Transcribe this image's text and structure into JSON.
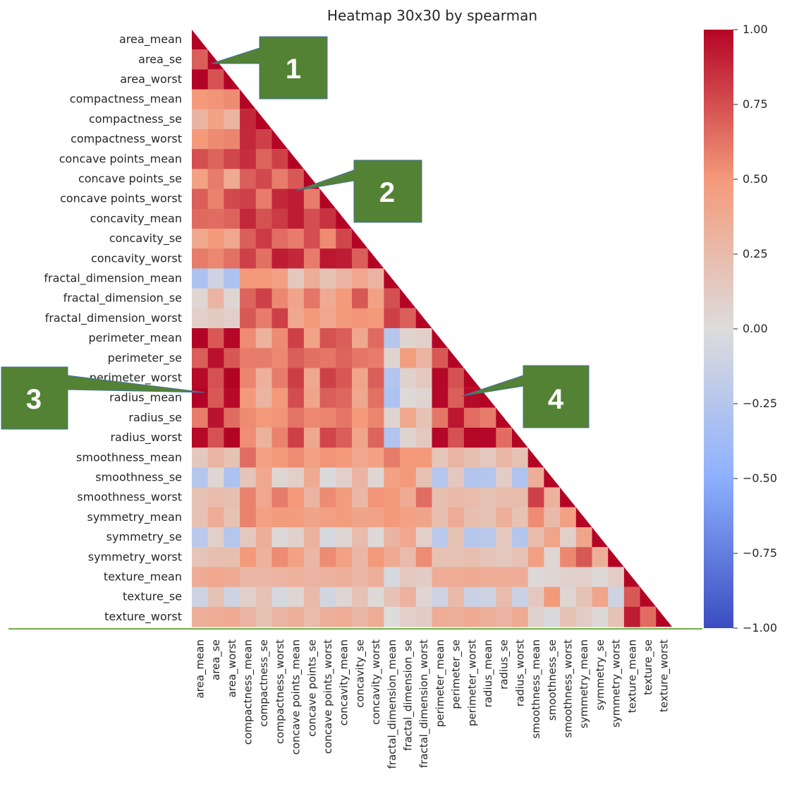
{
  "chart_data": {
    "type": "heatmap",
    "title": "Heatmap 30x30 by spearman",
    "labels": [
      "area_mean",
      "area_se",
      "area_worst",
      "compactness_mean",
      "compactness_se",
      "compactness_worst",
      "concave points_mean",
      "concave points_se",
      "concave points_worst",
      "concavity_mean",
      "concavity_se",
      "concavity_worst",
      "fractal_dimension_mean",
      "fractal_dimension_se",
      "fractal_dimension_worst",
      "perimeter_mean",
      "perimeter_se",
      "perimeter_worst",
      "radius_mean",
      "radius_se",
      "radius_worst",
      "smoothness_mean",
      "smoothness_se",
      "smoothness_worst",
      "symmetry_mean",
      "symmetry_se",
      "symmetry_worst",
      "texture_mean",
      "texture_se",
      "texture_worst"
    ],
    "mask": "upper-triangle",
    "colormap": "coolwarm",
    "vmin": -1.0,
    "vmax": 1.0,
    "colorbar_ticks": [
      "1.00",
      "0.75",
      "0.50",
      "0.25",
      "0.00",
      "−0.25",
      "−0.50",
      "−0.75",
      "−1.00"
    ],
    "matrix": [
      [
        1.0
      ],
      [
        0.7,
        1.0
      ],
      [
        1.0,
        0.74,
        1.0
      ],
      [
        0.5,
        0.52,
        0.55,
        1.0
      ],
      [
        0.3,
        0.45,
        0.3,
        0.88,
        1.0
      ],
      [
        0.5,
        0.55,
        0.57,
        0.88,
        0.8,
        1.0
      ],
      [
        0.75,
        0.68,
        0.78,
        0.86,
        0.68,
        0.8,
        1.0
      ],
      [
        0.45,
        0.6,
        0.38,
        0.7,
        0.77,
        0.6,
        0.72,
        1.0
      ],
      [
        0.7,
        0.58,
        0.77,
        0.8,
        0.6,
        0.88,
        0.92,
        0.6,
        1.0
      ],
      [
        0.66,
        0.65,
        0.68,
        0.88,
        0.74,
        0.82,
        0.92,
        0.75,
        0.85,
        1.0
      ],
      [
        0.4,
        0.5,
        0.4,
        0.7,
        0.82,
        0.65,
        0.6,
        0.75,
        0.55,
        0.78,
        1.0
      ],
      [
        0.6,
        0.56,
        0.64,
        0.8,
        0.64,
        0.92,
        0.88,
        0.6,
        0.94,
        0.92,
        0.7,
        1.0
      ],
      [
        -0.3,
        -0.1,
        -0.3,
        0.5,
        0.5,
        0.45,
        0.15,
        0.35,
        0.2,
        0.3,
        0.4,
        0.3,
        1.0
      ],
      [
        0.05,
        0.3,
        0.05,
        0.68,
        0.8,
        0.56,
        0.42,
        0.62,
        0.38,
        0.5,
        0.72,
        0.45,
        0.75,
        1.0
      ],
      [
        0.1,
        0.14,
        0.1,
        0.72,
        0.6,
        0.8,
        0.4,
        0.5,
        0.4,
        0.5,
        0.52,
        0.5,
        0.8,
        0.7,
        1.0
      ],
      [
        1.0,
        0.72,
        0.99,
        0.55,
        0.32,
        0.55,
        0.8,
        0.44,
        0.74,
        0.7,
        0.4,
        0.66,
        -0.25,
        0.06,
        0.1,
        1.0
      ],
      [
        0.7,
        0.96,
        0.72,
        0.6,
        0.6,
        0.56,
        0.7,
        0.64,
        0.62,
        0.68,
        0.62,
        0.6,
        0.06,
        0.48,
        0.3,
        0.72,
        1.0
      ],
      [
        0.98,
        0.74,
        1.0,
        0.57,
        0.33,
        0.6,
        0.81,
        0.4,
        0.8,
        0.72,
        0.42,
        0.7,
        -0.26,
        0.08,
        0.15,
        0.99,
        0.74,
        1.0
      ],
      [
        1.0,
        0.72,
        0.98,
        0.5,
        0.3,
        0.5,
        0.76,
        0.42,
        0.7,
        0.67,
        0.4,
        0.64,
        -0.3,
        0.03,
        0.06,
        0.99,
        0.7,
        0.98,
        1.0
      ],
      [
        0.6,
        0.95,
        0.65,
        0.55,
        0.5,
        0.52,
        0.63,
        0.56,
        0.57,
        0.62,
        0.5,
        0.57,
        0.06,
        0.4,
        0.2,
        0.62,
        0.94,
        0.65,
        0.6,
        1.0
      ],
      [
        0.98,
        0.74,
        1.0,
        0.54,
        0.32,
        0.58,
        0.8,
        0.4,
        0.78,
        0.7,
        0.42,
        0.68,
        -0.27,
        0.06,
        0.15,
        0.99,
        0.74,
        0.99,
        0.99,
        0.65,
        1.0
      ],
      [
        0.15,
        0.3,
        0.2,
        0.65,
        0.45,
        0.5,
        0.55,
        0.45,
        0.52,
        0.5,
        0.4,
        0.45,
        0.6,
        0.5,
        0.5,
        0.18,
        0.3,
        0.22,
        0.15,
        0.28,
        0.2,
        1.0
      ],
      [
        -0.25,
        0.05,
        -0.3,
        0.18,
        0.4,
        0.05,
        0.1,
        0.38,
        -0.02,
        0.1,
        0.3,
        0.05,
        0.45,
        0.5,
        0.2,
        -0.25,
        0.15,
        -0.26,
        -0.25,
        0.12,
        -0.28,
        0.35,
        1.0
      ],
      [
        0.2,
        0.25,
        0.22,
        0.58,
        0.4,
        0.6,
        0.5,
        0.3,
        0.55,
        0.48,
        0.28,
        0.52,
        0.5,
        0.38,
        0.65,
        0.22,
        0.26,
        0.25,
        0.2,
        0.24,
        0.24,
        0.8,
        0.32,
        1.0
      ],
      [
        0.2,
        0.36,
        0.2,
        0.58,
        0.45,
        0.48,
        0.48,
        0.42,
        0.46,
        0.48,
        0.42,
        0.44,
        0.5,
        0.45,
        0.42,
        0.22,
        0.36,
        0.22,
        0.2,
        0.34,
        0.2,
        0.55,
        0.26,
        0.46,
        1.0
      ],
      [
        -0.22,
        0.1,
        -0.25,
        0.15,
        0.35,
        0.02,
        0.08,
        0.32,
        -0.05,
        0.05,
        0.25,
        0.02,
        0.3,
        0.4,
        0.1,
        -0.22,
        0.2,
        -0.24,
        -0.22,
        0.15,
        -0.25,
        0.25,
        0.42,
        0.1,
        0.42,
        1.0
      ],
      [
        0.18,
        0.22,
        0.22,
        0.5,
        0.32,
        0.55,
        0.45,
        0.28,
        0.55,
        0.45,
        0.28,
        0.5,
        0.38,
        0.25,
        0.55,
        0.2,
        0.2,
        0.22,
        0.18,
        0.16,
        0.2,
        0.46,
        0.05,
        0.56,
        0.72,
        0.35,
        1.0
      ],
      [
        0.36,
        0.4,
        0.38,
        0.28,
        0.28,
        0.3,
        0.32,
        0.3,
        0.32,
        0.34,
        0.28,
        0.34,
        -0.05,
        0.15,
        0.12,
        0.36,
        0.36,
        0.38,
        0.36,
        0.36,
        0.36,
        0.02,
        0.05,
        0.08,
        0.1,
        0.02,
        0.12,
        1.0
      ],
      [
        -0.1,
        0.2,
        -0.1,
        0.1,
        0.2,
        -0.05,
        0.05,
        0.26,
        -0.08,
        0.05,
        0.2,
        0.02,
        0.2,
        0.32,
        0.05,
        -0.1,
        0.26,
        -0.12,
        -0.1,
        0.25,
        -0.12,
        0.15,
        0.5,
        0.05,
        0.2,
        0.42,
        -0.1,
        0.72,
        1.0
      ],
      [
        0.34,
        0.36,
        0.38,
        0.3,
        0.2,
        0.3,
        0.34,
        0.25,
        0.34,
        0.36,
        0.28,
        0.36,
        0.0,
        0.1,
        0.12,
        0.36,
        0.34,
        0.38,
        0.34,
        0.3,
        0.38,
        0.08,
        -0.02,
        0.2,
        0.12,
        0.02,
        0.2,
        0.92,
        0.65,
        1.0
      ]
    ]
  },
  "callouts": [
    {
      "label": "1",
      "color": "#548235"
    },
    {
      "label": "2",
      "color": "#548235"
    },
    {
      "label": "3",
      "color": "#548235"
    },
    {
      "label": "4",
      "color": "#548235"
    }
  ]
}
